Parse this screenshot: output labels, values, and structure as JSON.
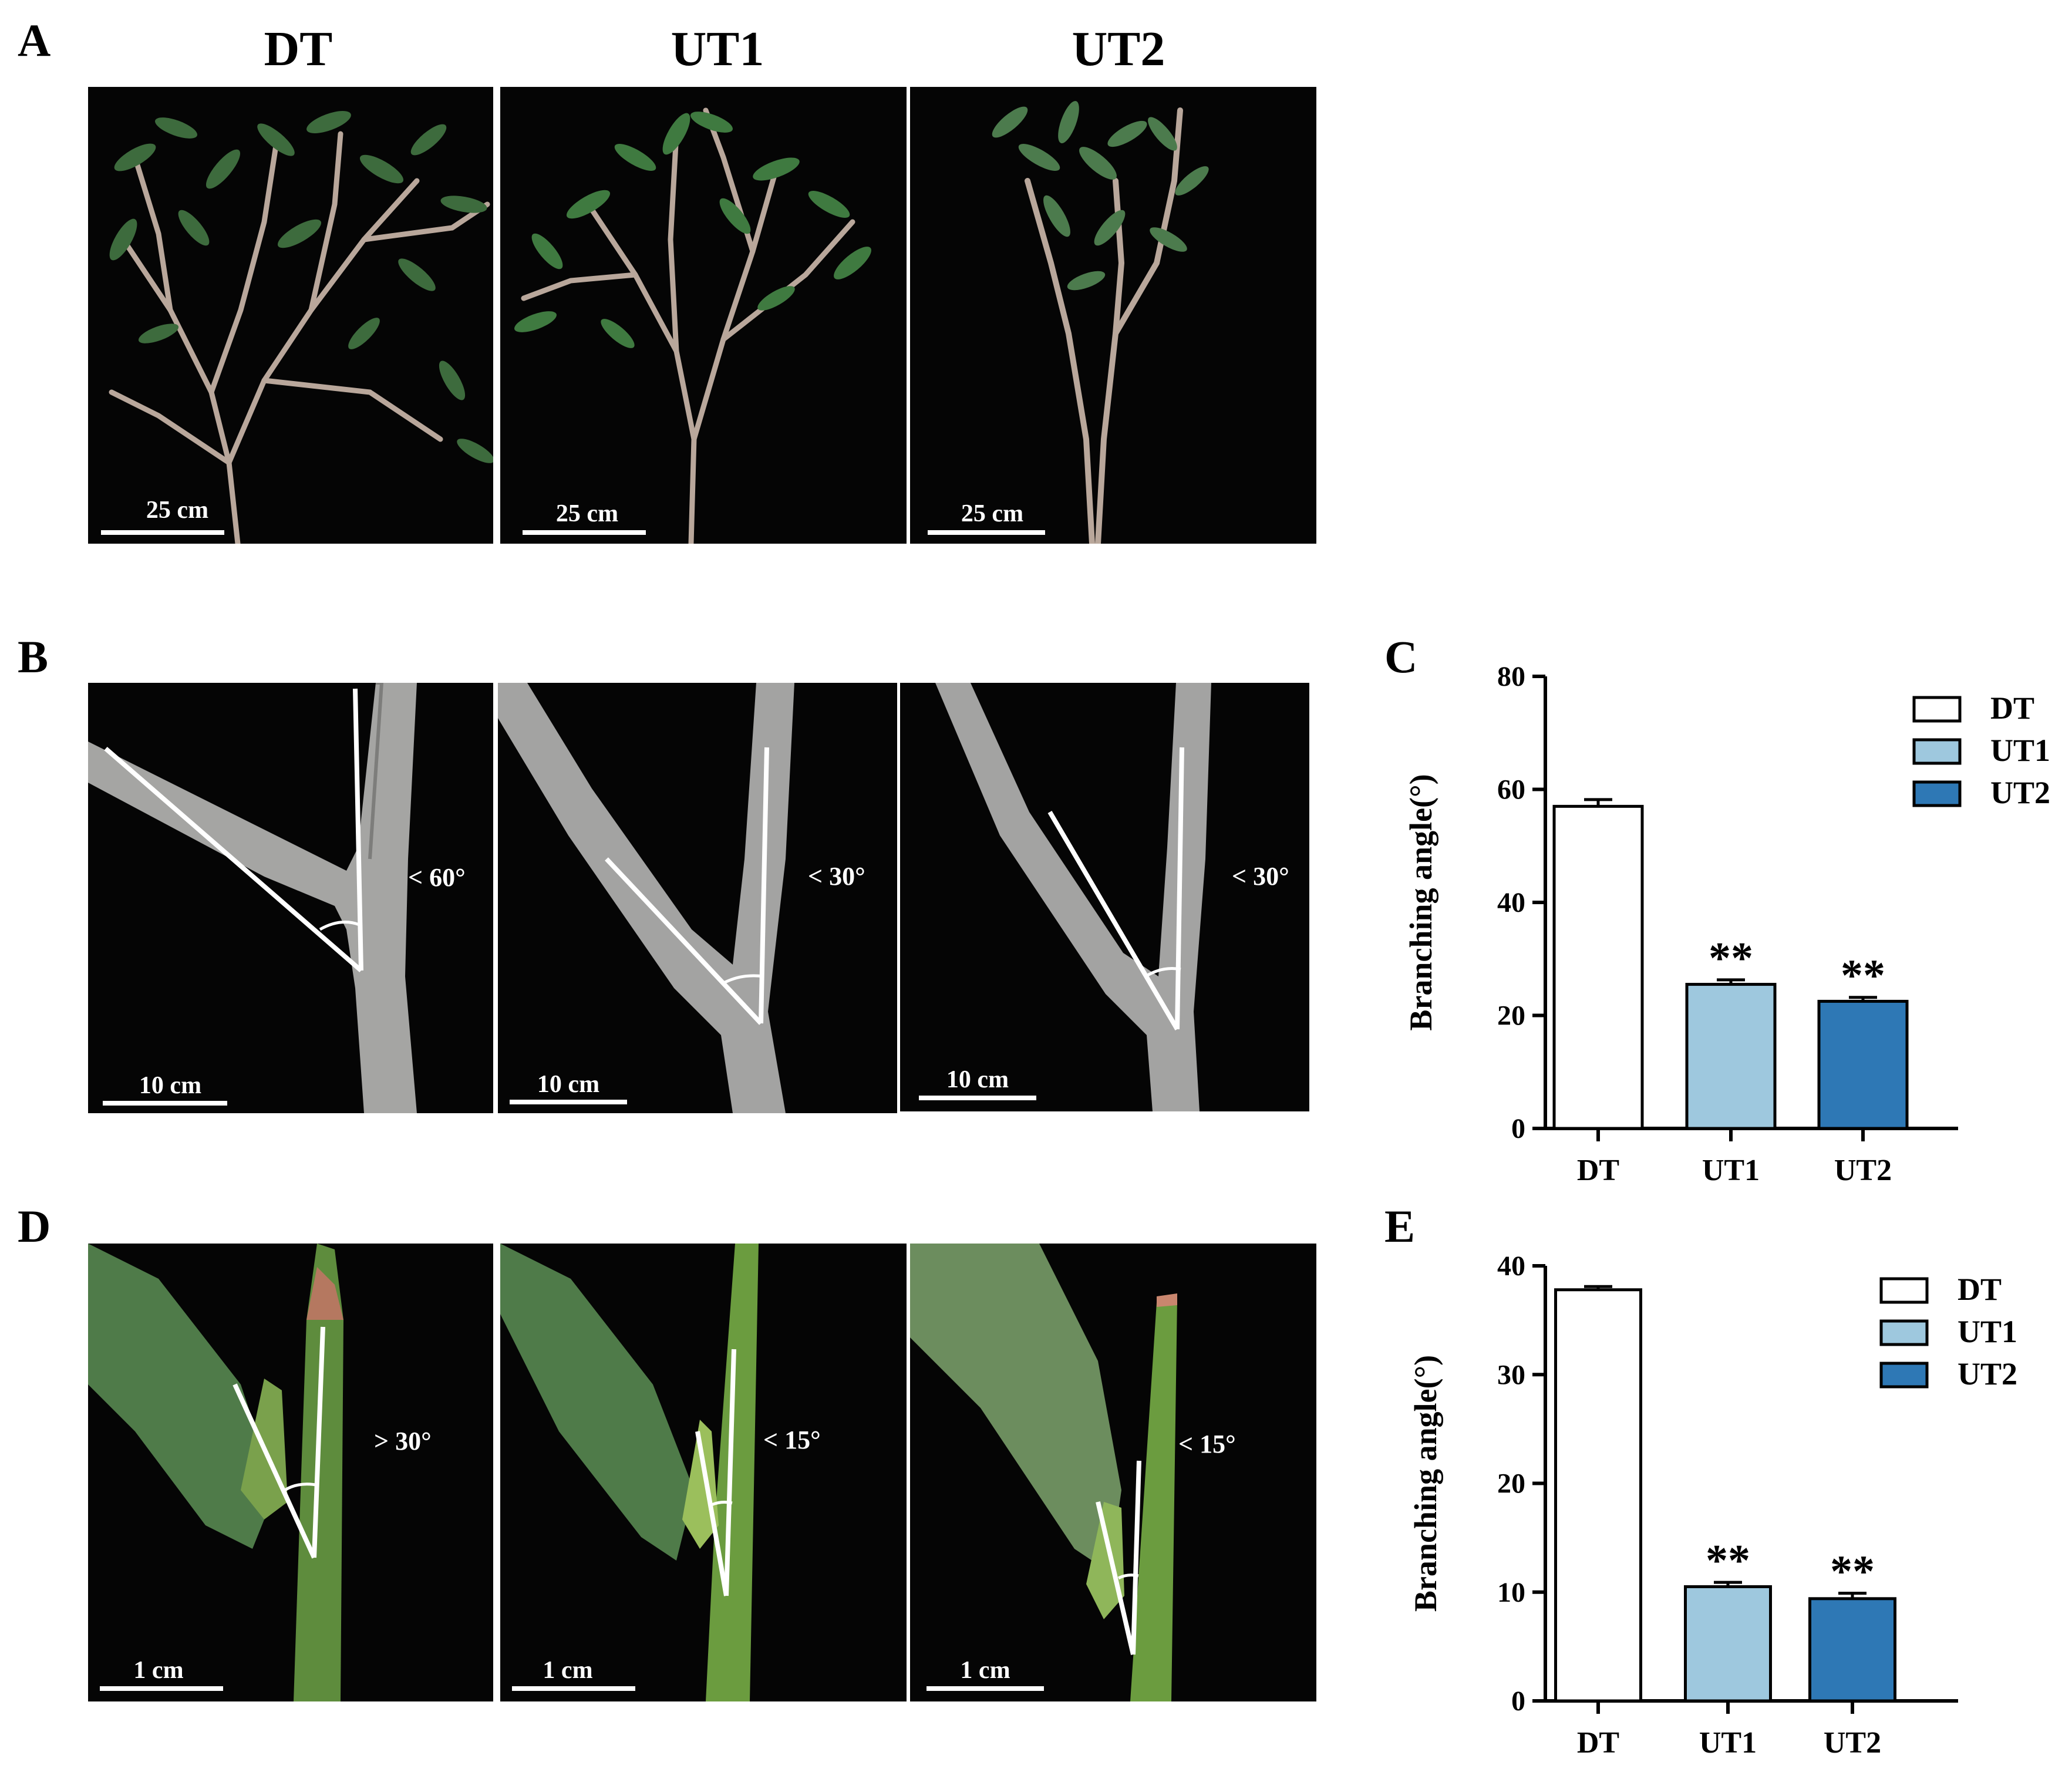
{
  "panels": {
    "A": {
      "letter": "A",
      "titles": [
        "DT",
        "UT1",
        "UT2"
      ],
      "scale": "25 cm"
    },
    "B": {
      "letter": "B",
      "scale": "10 cm",
      "angles": [
        "< 60°",
        "< 30°",
        "< 30°"
      ]
    },
    "C": {
      "letter": "C"
    },
    "D": {
      "letter": "D",
      "scale": "1 cm",
      "angles": [
        "> 30°",
        "< 15°",
        "< 15°"
      ]
    },
    "E": {
      "letter": "E"
    }
  },
  "colors": {
    "DT": "#ffffff",
    "UT1": "#9ec8de",
    "UT2": "#2e78b5"
  },
  "chart_data": [
    {
      "type": "bar",
      "panel": "C",
      "categories": [
        "DT",
        "UT1",
        "UT2"
      ],
      "values": [
        57,
        25.5,
        22.5
      ],
      "errors": [
        1.2,
        0.8,
        0.7
      ],
      "significance": [
        "",
        "**",
        "**"
      ],
      "xlabel": "",
      "ylabel": "Branching angle(°)",
      "ylim": [
        0,
        80
      ],
      "yticks": [
        0,
        20,
        40,
        60,
        80
      ],
      "legend": [
        "DT",
        "UT1",
        "UT2"
      ],
      "legend_position": "top-right",
      "grid": false
    },
    {
      "type": "bar",
      "panel": "E",
      "categories": [
        "DT",
        "UT1",
        "UT2"
      ],
      "values": [
        37.8,
        10.5,
        9.4
      ],
      "errors": [
        0.3,
        0.4,
        0.5
      ],
      "significance": [
        "",
        "**",
        "**"
      ],
      "xlabel": "",
      "ylabel": "Branching angle(°)",
      "ylim": [
        0,
        40
      ],
      "yticks": [
        0,
        10,
        20,
        30,
        40
      ],
      "legend": [
        "DT",
        "UT1",
        "UT2"
      ],
      "legend_position": "top-right",
      "grid": false
    }
  ]
}
